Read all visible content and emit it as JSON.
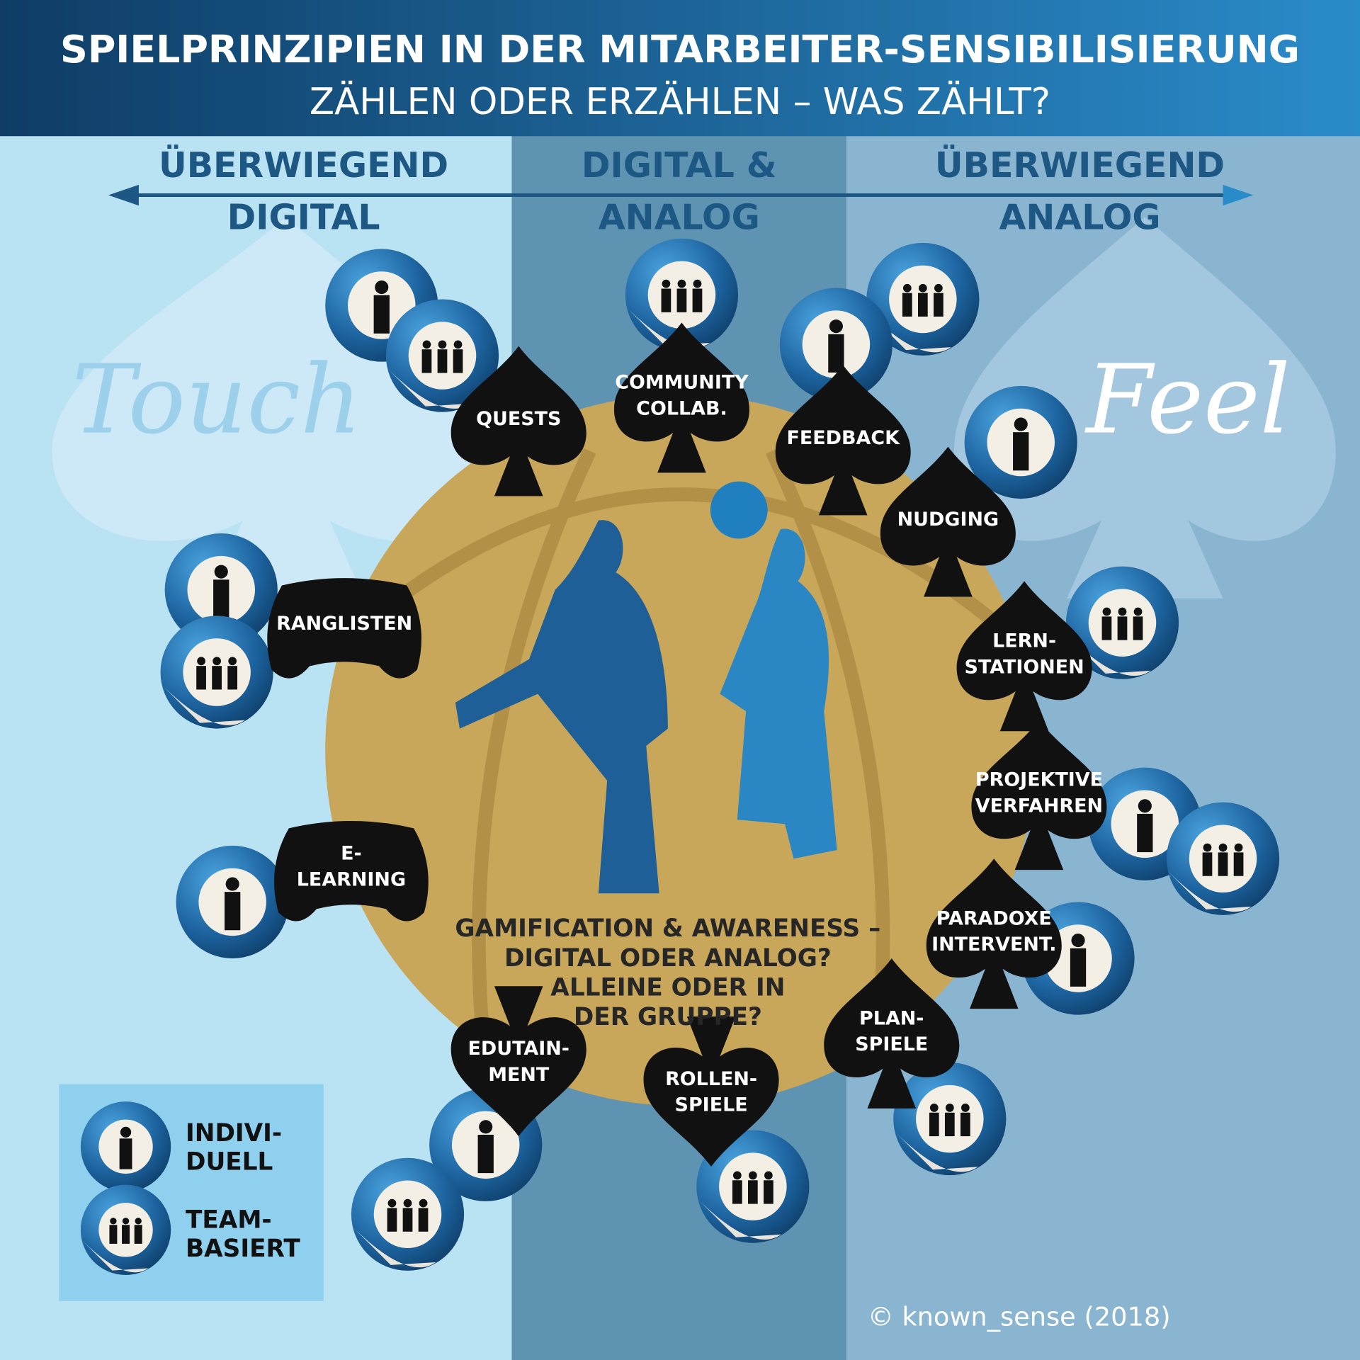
{
  "header": {
    "title": "SPIELPRINZIPIEN IN DER MITARBEITER-SENSIBILISIERUNG",
    "subtitle": "ZÄHLEN ODER ERZÄHLEN – WAS ZÄHLT?"
  },
  "columns": [
    {
      "lines": [
        "ÜBERWIEGEND",
        "DIGITAL"
      ]
    },
    {
      "lines": [
        "DIGITAL &",
        "ANALOG"
      ]
    },
    {
      "lines": [
        "ÜBERWIEGEND",
        "ANALOG"
      ]
    }
  ],
  "watermarks": [
    "Touch",
    "Feel"
  ],
  "items": [
    {
      "lines": [
        "QUESTS"
      ]
    },
    {
      "lines": [
        "COMMUNITY",
        "COLLAB."
      ]
    },
    {
      "lines": [
        "FEEDBACK"
      ]
    },
    {
      "lines": [
        "NUDGING"
      ]
    },
    {
      "lines": [
        "RANGLISTEN"
      ]
    },
    {
      "lines": [
        "LERN-",
        "STATIONEN"
      ]
    },
    {
      "lines": [
        "PROJEKTIVE",
        "VERFAHREN"
      ]
    },
    {
      "lines": [
        "E-",
        "LEARNING"
      ]
    },
    {
      "lines": [
        "PARADOXE",
        "INTERVENT."
      ]
    },
    {
      "lines": [
        "PLAN-",
        "SPIELE"
      ]
    },
    {
      "lines": [
        "EDUTAIN-",
        "MENT"
      ]
    },
    {
      "lines": [
        "ROLLEN-",
        "SPIELE"
      ]
    }
  ],
  "center": {
    "lines": [
      "GAMIFICATION & AWARENESS –",
      "DIGITAL ODER ANALOG?",
      "ALLEINE ODER IN",
      "DER GRUPPE?"
    ]
  },
  "legend": [
    {
      "lines": [
        "INDIVI-",
        "DUELL"
      ]
    },
    {
      "lines": [
        "TEAM-",
        "BASIERT"
      ]
    }
  ],
  "copyright": "© known_sense (2018)"
}
